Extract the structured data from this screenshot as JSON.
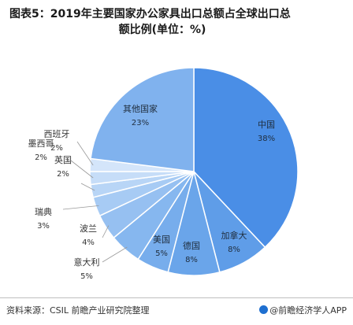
{
  "title": {
    "line1": "图表5：2019年主要国家办公家具出口总额占全球出口总",
    "line2": "额比例(单位：%)"
  },
  "chart_data": {
    "type": "pie",
    "title": "图表5：2019年主要国家办公家具出口总额占全球出口总额比例(单位：%)",
    "unit": "%",
    "slices": [
      {
        "name": "中国",
        "value": 38,
        "label": "38%",
        "color": "#4a8ee6"
      },
      {
        "name": "加拿大",
        "value": 8,
        "label": "8%",
        "color": "#5f9de8"
      },
      {
        "name": "德国",
        "value": 8,
        "label": "8%",
        "color": "#6aa5ea"
      },
      {
        "name": "美国",
        "value": 5,
        "label": "5%",
        "color": "#77adec"
      },
      {
        "name": "意大利",
        "value": 5,
        "label": "5%",
        "color": "#86b7ef"
      },
      {
        "name": "波兰",
        "value": 4,
        "label": "4%",
        "color": "#96c0f1"
      },
      {
        "name": "瑞典",
        "value": 3,
        "label": "3%",
        "color": "#a7cbf4"
      },
      {
        "name": "英国",
        "value": 2,
        "label": "2%",
        "color": "#b8d5f6"
      },
      {
        "name": "墨西哥",
        "value": 2,
        "label": "2%",
        "color": "#c6ddf8"
      },
      {
        "name": "西班牙",
        "value": 2,
        "label": "2%",
        "color": "#d4e5fa"
      },
      {
        "name": "其他国家",
        "value": 23,
        "label": "23%",
        "color": "#80b2ee"
      }
    ]
  },
  "footer": {
    "source": "资料来源：CSIL 前瞻产业研究院整理",
    "brand": "@前瞻经济学人APP"
  }
}
